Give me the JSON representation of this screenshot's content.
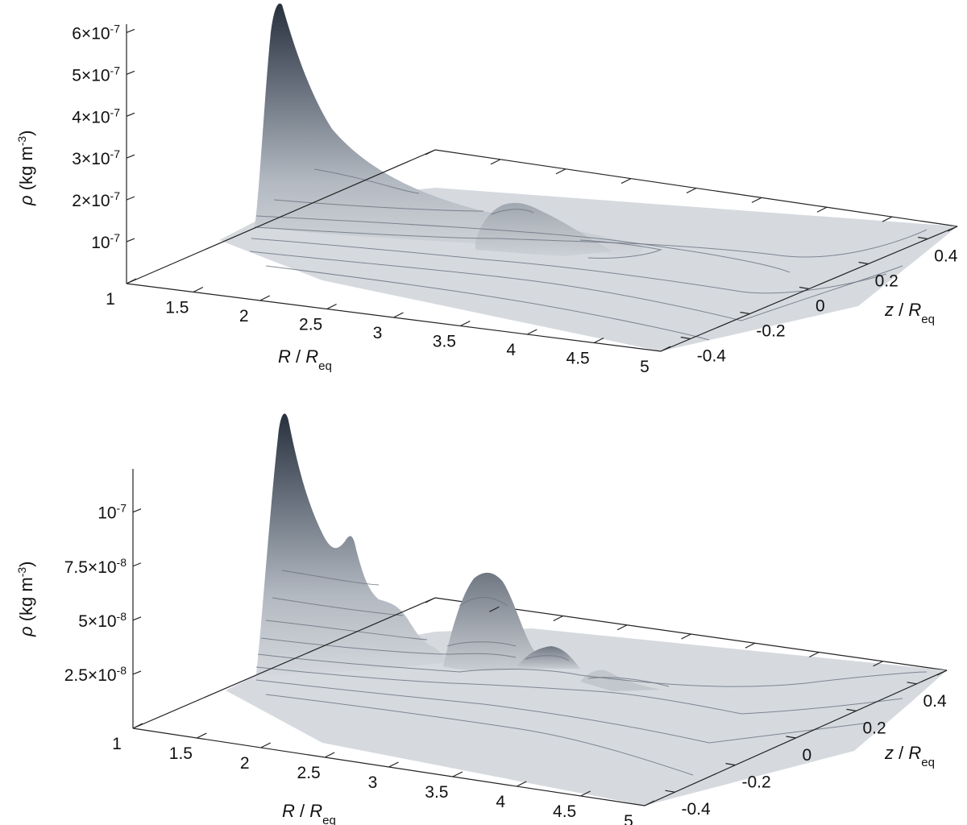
{
  "chart_data": [
    {
      "type": "surface",
      "panel": "top",
      "xlabel": {
        "var": "R",
        "sep": " / ",
        "base": "R",
        "sub": "eq"
      },
      "zlabel": {
        "var": "z",
        "sep": " / ",
        "base": "R",
        "sub": "eq"
      },
      "ylabel": {
        "var": "ρ",
        "unit": " (kg m",
        "exp": "-3",
        "close": ")"
      },
      "x_ticks": [
        "1",
        "1.5",
        "2",
        "2.5",
        "3",
        "3.5",
        "4",
        "4.5",
        "5"
      ],
      "z_ticks": [
        "-0.4",
        "-0.2",
        "0",
        "0.2",
        "0.4"
      ],
      "y_ticks": [
        {
          "mant": "",
          "exp": "10",
          "pow": "-7"
        },
        {
          "mant": "2×",
          "exp": "10",
          "pow": "-7"
        },
        {
          "mant": "3×",
          "exp": "10",
          "pow": "-7"
        },
        {
          "mant": "4×",
          "exp": "10",
          "pow": "-7"
        },
        {
          "mant": "5×",
          "exp": "10",
          "pow": "-7"
        },
        {
          "mant": "6×",
          "exp": "10",
          "pow": "-7"
        }
      ],
      "xlim": [
        1,
        5
      ],
      "zlim": [
        -0.5,
        0.5
      ],
      "ylim": [
        0,
        6.2e-07
      ],
      "peak": {
        "R": 1.0,
        "rho": 6.2e-07
      },
      "secondary_bump": {
        "R": 2.9,
        "z": 0.05,
        "rho": 1.7e-07
      },
      "colors": {
        "surface_high": "#27303c",
        "surface_low": "#d6dadf",
        "contour": "#6e7683"
      }
    },
    {
      "type": "surface",
      "panel": "bottom",
      "xlabel": {
        "var": "R",
        "sep": " / ",
        "base": "R",
        "sub": "eq"
      },
      "zlabel": {
        "var": "z",
        "sep": " / ",
        "base": "R",
        "sub": "eq"
      },
      "ylabel": {
        "var": "ρ",
        "unit": " (kg m",
        "exp": "-3",
        "close": ")"
      },
      "x_ticks": [
        "1",
        "1.5",
        "2",
        "2.5",
        "3",
        "3.5",
        "4",
        "4.5",
        "5"
      ],
      "z_ticks": [
        "-0.4",
        "-0.2",
        "0",
        "0.2",
        "0.4"
      ],
      "y_ticks": [
        {
          "mant": "2.5×",
          "exp": "10",
          "pow": "-8"
        },
        {
          "mant": "5×",
          "exp": "10",
          "pow": "-8"
        },
        {
          "mant": "7.5×",
          "exp": "10",
          "pow": "-8"
        },
        {
          "mant": "",
          "exp": "10",
          "pow": "-7"
        }
      ],
      "xlim": [
        1,
        5
      ],
      "zlim": [
        -0.5,
        0.5
      ],
      "ylim": [
        0,
        1.2e-07
      ],
      "peak": {
        "R": 1.0,
        "rho": 1.2e-07
      },
      "secondary_bumps": [
        {
          "R": 1.4,
          "z": 0.3,
          "rho": 8e-08
        },
        {
          "R": 1.75,
          "z": 0.3,
          "rho": 6.2e-08
        },
        {
          "R": 2.85,
          "z": 0.05,
          "rho": 7e-08
        },
        {
          "R": 3.3,
          "z": 0.05,
          "rho": 4e-08
        },
        {
          "R": 3.75,
          "z": 0.05,
          "rho": 2.8e-08
        }
      ],
      "colors": {
        "surface_high": "#27303c",
        "surface_low": "#d6dadf",
        "contour": "#6e7683"
      }
    }
  ]
}
